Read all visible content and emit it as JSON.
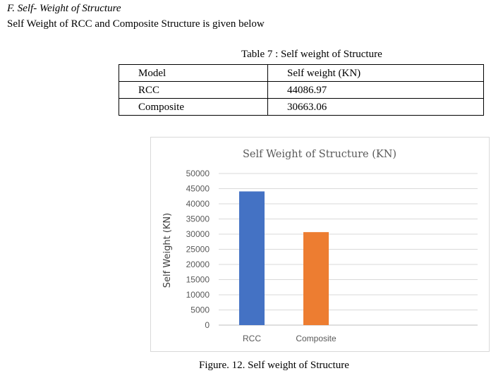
{
  "section": {
    "heading": "F.   Self- Weight of Structure",
    "intro": "Self Weight of RCC and Composite Structure is given below"
  },
  "table": {
    "caption": "Table 7 : Self weight of Structure",
    "headers": [
      "Model",
      "Self weight (KN)"
    ],
    "rows": [
      [
        "RCC",
        "44086.97"
      ],
      [
        "Composite",
        "30663.06"
      ]
    ]
  },
  "chart_data": {
    "type": "bar",
    "title": "Self Weight of Structure (KN)",
    "xlabel": "",
    "ylabel": "Self Weight (KN)",
    "categories": [
      "RCC",
      "Composite"
    ],
    "values": [
      44086.97,
      30663.06
    ],
    "colors": [
      "#4472c4",
      "#ed7d31"
    ],
    "ylim": [
      0,
      50000
    ],
    "ytick_labels": [
      "50000",
      "45000",
      "40000",
      "35000",
      "30000",
      "25000",
      "20000",
      "15000",
      "10000",
      "5000",
      "0"
    ],
    "grid": true,
    "legend": "none"
  },
  "figure": {
    "caption": "Figure. 12. Self weight of Structure"
  }
}
